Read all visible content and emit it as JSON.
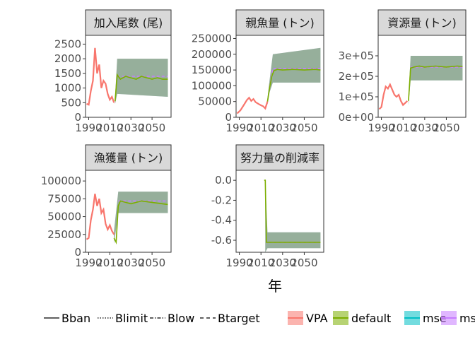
{
  "chart_data": {
    "type": "line",
    "xlabel": "年",
    "x_ticks": [
      1990,
      2010,
      2030,
      2050
    ],
    "colors": {
      "VPA": "#f8766d",
      "default": "#7cae00",
      "mse": "#00bfc4",
      "msy": "#c77cff",
      "band": "#5b6fe0"
    },
    "panels": [
      {
        "title": "加入尾数 (尾)",
        "ylim": [
          0,
          2800
        ],
        "y_ticks": [
          0,
          500,
          1000,
          1500,
          2000,
          2500
        ],
        "y_tick_labels": [
          "0",
          "500",
          "1000",
          "1500",
          "2000",
          "2500"
        ],
        "vpa": [
          [
            1988,
            460
          ],
          [
            1990,
            430
          ],
          [
            1992,
            900
          ],
          [
            1994,
            1250
          ],
          [
            1996,
            2370
          ],
          [
            1998,
            1500
          ],
          [
            2000,
            1800
          ],
          [
            2002,
            1000
          ],
          [
            2004,
            1250
          ],
          [
            2006,
            1150
          ],
          [
            2008,
            800
          ],
          [
            2010,
            600
          ],
          [
            2012,
            700
          ],
          [
            2014,
            500
          ]
        ],
        "default": [
          [
            2015,
            550
          ],
          [
            2017,
            1450
          ],
          [
            2020,
            1300
          ],
          [
            2025,
            1400
          ],
          [
            2030,
            1350
          ],
          [
            2035,
            1300
          ],
          [
            2040,
            1400
          ],
          [
            2045,
            1350
          ],
          [
            2050,
            1300
          ],
          [
            2055,
            1350
          ],
          [
            2060,
            1300
          ],
          [
            2065,
            1300
          ]
        ],
        "band": [
          [
            2015,
            450,
            700
          ],
          [
            2017,
            800,
            2000
          ],
          [
            2065,
            700,
            2000
          ]
        ],
        "msy": [
          [
            2017,
            1400
          ],
          [
            2065,
            1400
          ]
        ]
      },
      {
        "title": "親魚量 (トン)",
        "ylim": [
          0,
          260000
        ],
        "y_ticks": [
          0,
          50000,
          100000,
          150000,
          200000,
          250000
        ],
        "y_tick_labels": [
          "0",
          "50000",
          "100000",
          "150000",
          "200000",
          "250000"
        ],
        "vpa": [
          [
            1988,
            12000
          ],
          [
            1991,
            22000
          ],
          [
            1994,
            38000
          ],
          [
            1997,
            55000
          ],
          [
            1999,
            62000
          ],
          [
            2001,
            52000
          ],
          [
            2003,
            58000
          ],
          [
            2005,
            48000
          ],
          [
            2008,
            42000
          ],
          [
            2010,
            38000
          ],
          [
            2012,
            35000
          ],
          [
            2014,
            28000
          ],
          [
            2016,
            50000
          ]
        ],
        "default": [
          [
            2016,
            50000
          ],
          [
            2018,
            95000
          ],
          [
            2020,
            130000
          ],
          [
            2022,
            148000
          ],
          [
            2025,
            152000
          ],
          [
            2030,
            150000
          ],
          [
            2040,
            152000
          ],
          [
            2050,
            150000
          ],
          [
            2060,
            152000
          ],
          [
            2065,
            150000
          ]
        ],
        "band": [
          [
            2016,
            40000,
            60000
          ],
          [
            2018,
            80000,
            120000
          ],
          [
            2021,
            110000,
            200000
          ],
          [
            2065,
            110000,
            220000
          ]
        ],
        "msy": [
          [
            2018,
            95000
          ],
          [
            2021,
            155000
          ],
          [
            2065,
            155000
          ]
        ]
      },
      {
        "title": "資源量 (トン)",
        "ylim": [
          0,
          400000
        ],
        "y_ticks": [
          0,
          100000,
          200000,
          300000
        ],
        "y_tick_labels": [
          "0e+00",
          "1e+05",
          "2e+05",
          "3e+05"
        ],
        "vpa": [
          [
            1988,
            40000
          ],
          [
            1990,
            50000
          ],
          [
            1992,
            110000
          ],
          [
            1994,
            150000
          ],
          [
            1996,
            140000
          ],
          [
            1998,
            160000
          ],
          [
            2000,
            135000
          ],
          [
            2002,
            110000
          ],
          [
            2004,
            100000
          ],
          [
            2006,
            110000
          ],
          [
            2008,
            80000
          ],
          [
            2010,
            60000
          ],
          [
            2012,
            70000
          ],
          [
            2014,
            80000
          ]
        ],
        "default": [
          [
            2015,
            80000
          ],
          [
            2017,
            240000
          ],
          [
            2020,
            245000
          ],
          [
            2025,
            250000
          ],
          [
            2030,
            245000
          ],
          [
            2040,
            250000
          ],
          [
            2050,
            245000
          ],
          [
            2060,
            250000
          ],
          [
            2065,
            248000
          ]
        ],
        "band": [
          [
            2015,
            60000,
            90000
          ],
          [
            2017,
            180000,
            300000
          ],
          [
            2065,
            180000,
            300000
          ]
        ],
        "msy": [
          [
            2017,
            245000
          ],
          [
            2065,
            245000
          ]
        ]
      },
      {
        "title": "漁獲量 (トン)",
        "ylim": [
          0,
          115000
        ],
        "y_ticks": [
          0,
          25000,
          50000,
          75000,
          100000
        ],
        "y_tick_labels": [
          "0",
          "25000",
          "50000",
          "75000",
          "100000"
        ],
        "vpa": [
          [
            1988,
            18000
          ],
          [
            1990,
            20000
          ],
          [
            1992,
            45000
          ],
          [
            1994,
            60000
          ],
          [
            1996,
            82000
          ],
          [
            1998,
            65000
          ],
          [
            2000,
            75000
          ],
          [
            2002,
            55000
          ],
          [
            2004,
            60000
          ],
          [
            2006,
            40000
          ],
          [
            2008,
            32000
          ],
          [
            2010,
            38000
          ],
          [
            2012,
            30000
          ],
          [
            2014,
            25000
          ]
        ],
        "default": [
          [
            2014,
            20000
          ],
          [
            2016,
            14000
          ],
          [
            2018,
            65000
          ],
          [
            2020,
            72000
          ],
          [
            2025,
            70000
          ],
          [
            2030,
            68000
          ],
          [
            2040,
            72000
          ],
          [
            2050,
            70000
          ],
          [
            2060,
            68000
          ],
          [
            2065,
            67000
          ]
        ],
        "band": [
          [
            2014,
            12000,
            30000
          ],
          [
            2018,
            55000,
            85000
          ],
          [
            2065,
            55000,
            85000
          ]
        ],
        "msy": [
          [
            2018,
            72000
          ],
          [
            2065,
            72000
          ]
        ]
      },
      {
        "title": "努力量の削減率",
        "ylim": [
          -0.72,
          0.1
        ],
        "y_ticks": [
          -0.6,
          -0.4,
          -0.2,
          0.0
        ],
        "y_tick_labels": [
          "-0.6",
          "-0.4",
          "-0.2",
          "0.0"
        ],
        "vpa": [],
        "default": [
          [
            2013,
            0.0
          ],
          [
            2014,
            0.0
          ],
          [
            2015,
            -0.62
          ],
          [
            2065,
            -0.62
          ]
        ],
        "band": [
          [
            2014,
            -0.72,
            0.0
          ],
          [
            2016,
            -0.68,
            -0.52
          ],
          [
            2065,
            -0.68,
            -0.52
          ]
        ],
        "msy": [
          [
            2015,
            -0.62
          ],
          [
            2065,
            -0.62
          ]
        ]
      }
    ],
    "legend_lines": [
      "Bban",
      "Blimit",
      "Blow",
      "Btarget"
    ],
    "legend_series": [
      "VPA",
      "default",
      "mse",
      "msy"
    ]
  }
}
